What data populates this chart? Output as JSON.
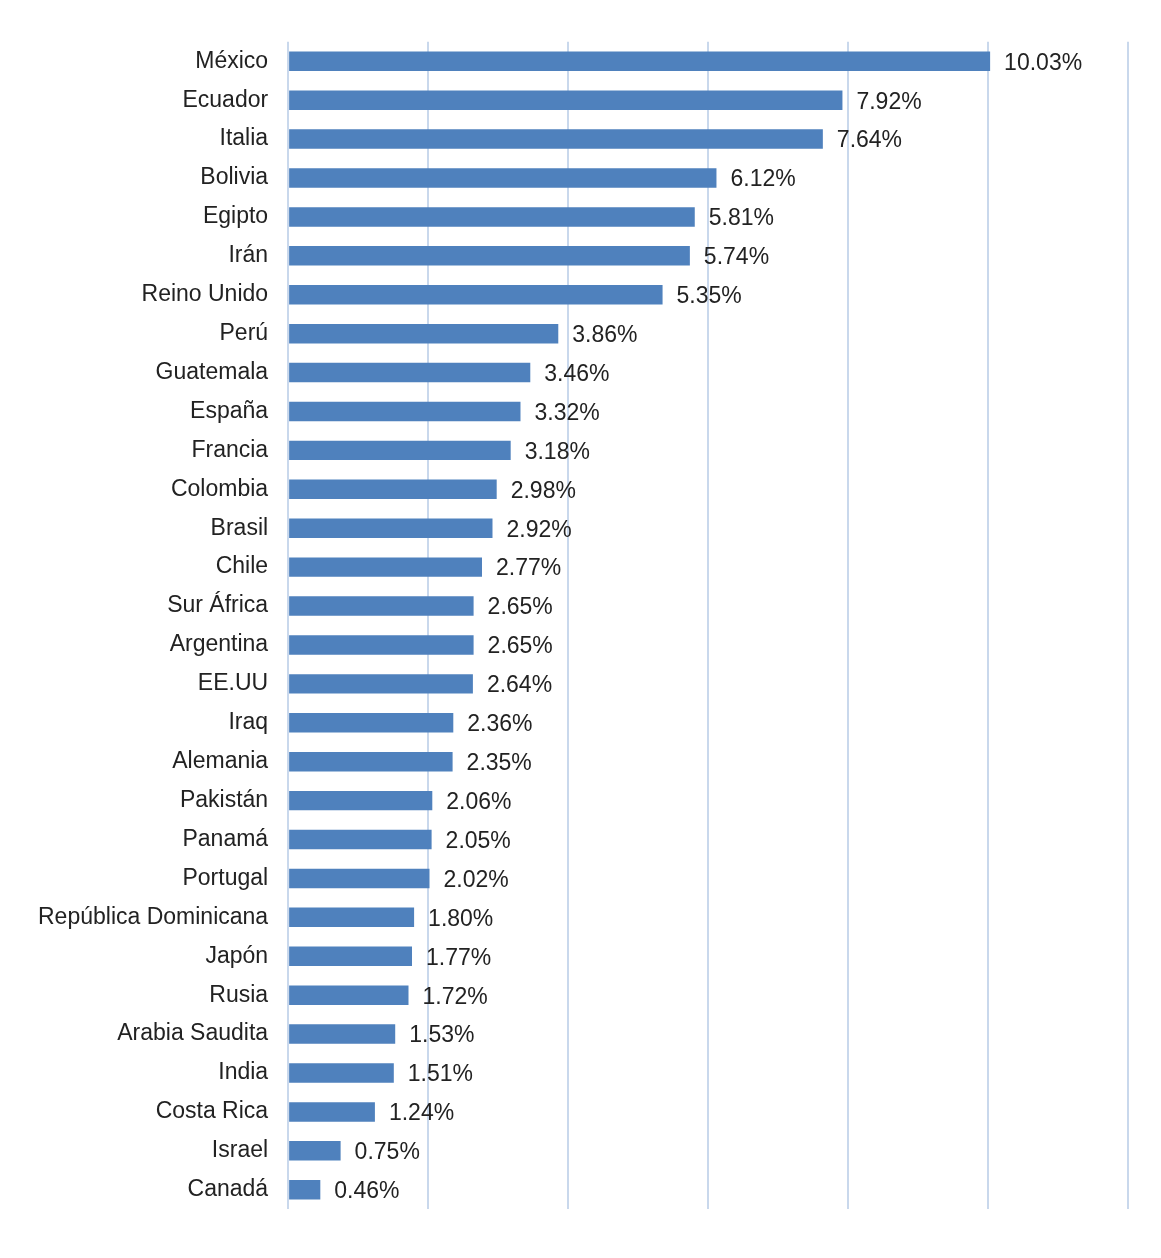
{
  "chart_data": {
    "type": "bar",
    "orientation": "horizontal",
    "categories": [
      "México",
      "Ecuador",
      "Italia",
      "Bolivia",
      "Egipto",
      "Irán",
      "Reino Unido",
      "Perú",
      "Guatemala",
      "España",
      "Francia",
      "Colombia",
      "Brasil",
      "Chile",
      "Sur África",
      "Argentina",
      "EE.UU",
      "Iraq",
      "Alemania",
      "Pakistán",
      "Panamá",
      "Portugal",
      "República Dominicana",
      "Japón",
      "Rusia",
      "Arabia Saudita",
      "India",
      "Costa Rica",
      "Israel",
      "Canadá"
    ],
    "values": [
      10.03,
      7.92,
      7.64,
      6.12,
      5.81,
      5.74,
      5.35,
      3.86,
      3.46,
      3.32,
      3.18,
      2.98,
      2.92,
      2.77,
      2.65,
      2.65,
      2.64,
      2.36,
      2.35,
      2.06,
      2.05,
      2.02,
      1.8,
      1.77,
      1.72,
      1.53,
      1.51,
      1.24,
      0.75,
      0.46
    ],
    "value_labels": [
      "10.03%",
      "7.92%",
      "7.64%",
      "6.12%",
      "5.81%",
      "5.74%",
      "5.35%",
      "3.86%",
      "3.46%",
      "3.32%",
      "3.18%",
      "2.98%",
      "2.92%",
      "2.77%",
      "2.65%",
      "2.65%",
      "2.64%",
      "2.36%",
      "2.35%",
      "2.06%",
      "2.05%",
      "2.02%",
      "1.80%",
      "1.77%",
      "1.72%",
      "1.53%",
      "1.51%",
      "1.24%",
      "0.75%",
      "0.46%"
    ],
    "color": "#4f81bd",
    "xlim": [
      0,
      12
    ],
    "xticks": [
      {
        "value": 0,
        "label": null
      },
      {
        "value": 2,
        "label": null
      },
      {
        "value": 4,
        "label": null
      },
      {
        "value": 6,
        "label": null
      },
      {
        "value": 8,
        "label": null
      },
      {
        "value": 10,
        "label": null
      },
      {
        "value": 12,
        "label": null
      }
    ],
    "grid": "x",
    "legend": false,
    "tick_labels": "y"
  }
}
